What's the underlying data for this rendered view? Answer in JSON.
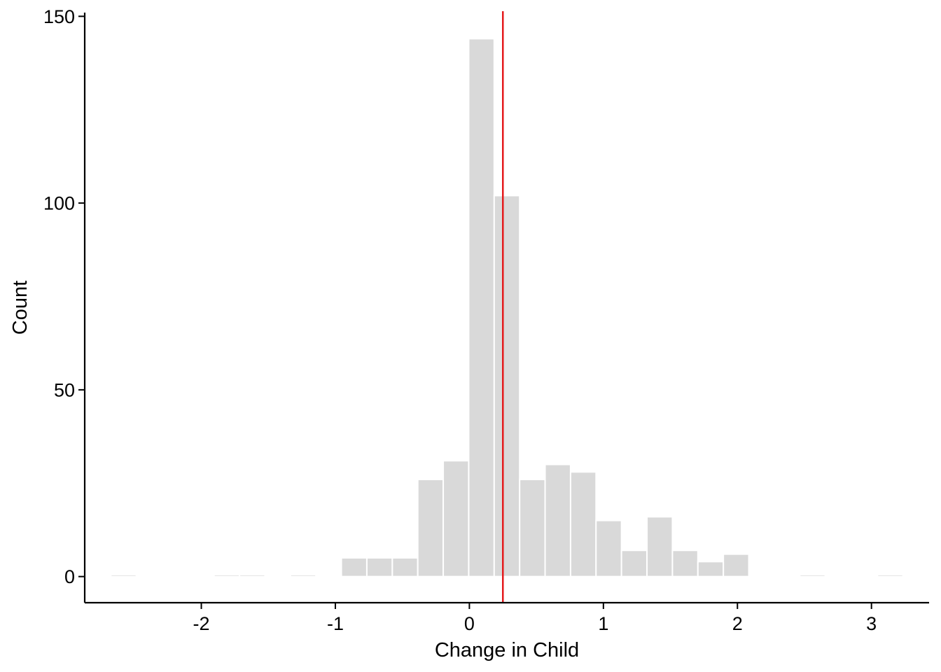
{
  "chart_data": {
    "type": "bar",
    "title": "",
    "xlabel": "Change in Child",
    "ylabel": "Count",
    "xlim": [
      -2.87,
      3.43
    ],
    "ylim": [
      -7,
      151
    ],
    "x_ticks": [
      -2,
      -1,
      0,
      1,
      2,
      3
    ],
    "x_tick_labels": [
      "-2",
      "-1",
      "0",
      "1",
      "2",
      "3"
    ],
    "y_ticks": [
      0,
      50,
      100,
      150
    ],
    "y_tick_labels": [
      "0",
      "50",
      "100",
      "150"
    ],
    "grid": false,
    "legend": "none",
    "bin_width": 0.19,
    "bins": [
      {
        "x": -2.58,
        "count": 0.5
      },
      {
        "x": -1.81,
        "count": 0.5
      },
      {
        "x": -1.62,
        "count": 0.5
      },
      {
        "x": -1.24,
        "count": 0.5
      },
      {
        "x": -0.86,
        "count": 5
      },
      {
        "x": -0.67,
        "count": 5
      },
      {
        "x": -0.48,
        "count": 5
      },
      {
        "x": -0.29,
        "count": 26
      },
      {
        "x": -0.1,
        "count": 31
      },
      {
        "x": 0.09,
        "count": 144
      },
      {
        "x": 0.28,
        "count": 102
      },
      {
        "x": 0.47,
        "count": 26
      },
      {
        "x": 0.66,
        "count": 30
      },
      {
        "x": 0.85,
        "count": 28
      },
      {
        "x": 1.04,
        "count": 15
      },
      {
        "x": 1.23,
        "count": 7
      },
      {
        "x": 1.42,
        "count": 16
      },
      {
        "x": 1.61,
        "count": 7
      },
      {
        "x": 1.8,
        "count": 4
      },
      {
        "x": 1.99,
        "count": 6
      },
      {
        "x": 2.56,
        "count": 0.5
      },
      {
        "x": 3.14,
        "count": 0.5
      }
    ],
    "bar_color": "#d9d9d9",
    "bar_border_color": "#ffffff",
    "reference_line": {
      "x": 0.25,
      "color": "#e41a1c"
    }
  }
}
